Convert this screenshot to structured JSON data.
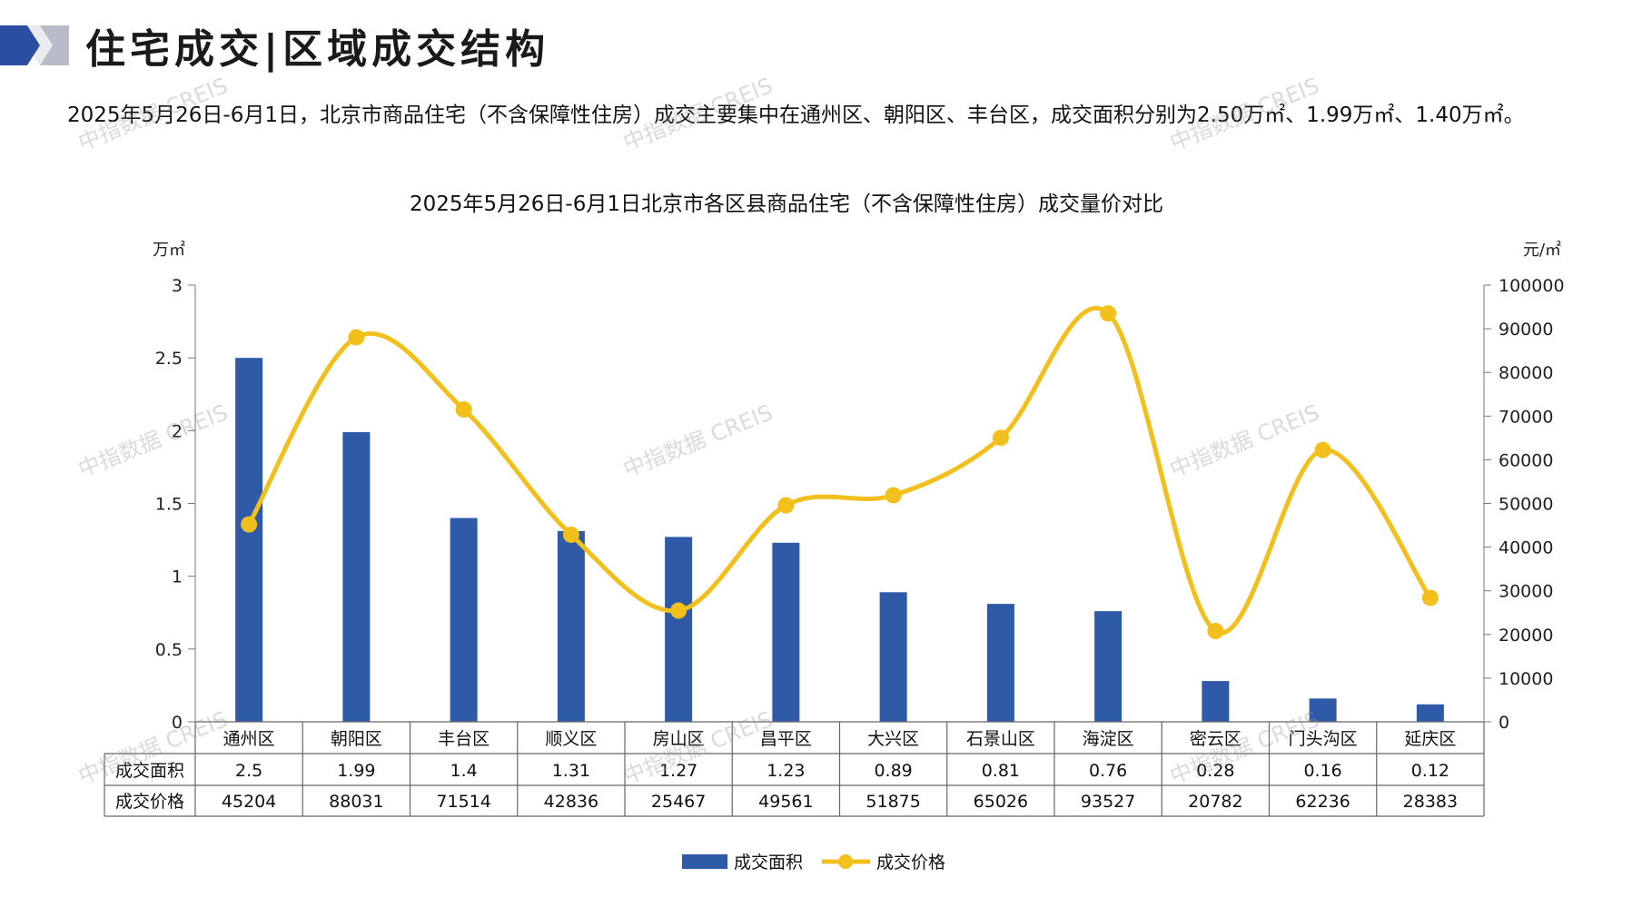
{
  "page": {
    "title": "住宅成交|区域成交结构",
    "summary": "2025年5月26日-6月1日，北京市商品住宅（不含保障性住房）成交主要集中在通州区、朝阳区、丰台区，成交面积分别为2.50万㎡、1.99万㎡、1.40万㎡。",
    "watermark": "中指数据 CREIS"
  },
  "colors": {
    "bar": "#2f5aa8",
    "line": "#f2c01c",
    "logo_dark": "#2b4fa0",
    "logo_light": "#b8bcc8"
  },
  "chart_data": {
    "type": "bar",
    "title": "2025年5月26日-6月1日北京市各区县商品住宅（不含保障性住房）成交量价对比",
    "categories": [
      "通州区",
      "朝阳区",
      "丰台区",
      "顺义区",
      "房山区",
      "昌平区",
      "大兴区",
      "石景山区",
      "海淀区",
      "密云区",
      "门头沟区",
      "延庆区"
    ],
    "series": [
      {
        "name": "成交面积",
        "type": "bar",
        "axis": "left",
        "values": [
          2.5,
          1.99,
          1.4,
          1.31,
          1.27,
          1.23,
          0.89,
          0.81,
          0.76,
          0.28,
          0.16,
          0.12
        ],
        "labels": [
          "2.5",
          "1.99",
          "1.4",
          "1.31",
          "1.27",
          "1.23",
          "0.89",
          "0.81",
          "0.76",
          "0.28",
          "0.16",
          "0.12"
        ]
      },
      {
        "name": "成交价格",
        "type": "line",
        "axis": "right",
        "values": [
          45204,
          88031,
          71514,
          42836,
          25467,
          49561,
          51875,
          65026,
          93527,
          20782,
          62236,
          28383
        ],
        "labels": [
          "45204",
          "88031",
          "71514",
          "42836",
          "25467",
          "49561",
          "51875",
          "65026",
          "93527",
          "20782",
          "62236",
          "28383"
        ]
      }
    ],
    "ylabel_left": "万㎡",
    "ylabel_right": "元/㎡",
    "ylim_left": [
      0,
      3
    ],
    "ylim_right": [
      0,
      100000
    ],
    "yticks_left": [
      "0",
      "0.5",
      "1",
      "1.5",
      "2",
      "2.5",
      "3"
    ],
    "yticks_right": [
      "0",
      "10000",
      "20000",
      "30000",
      "40000",
      "50000",
      "60000",
      "70000",
      "80000",
      "90000",
      "100000"
    ],
    "legend": [
      "成交面积",
      "成交价格"
    ],
    "legend_position": "bottom",
    "data_table": true
  }
}
